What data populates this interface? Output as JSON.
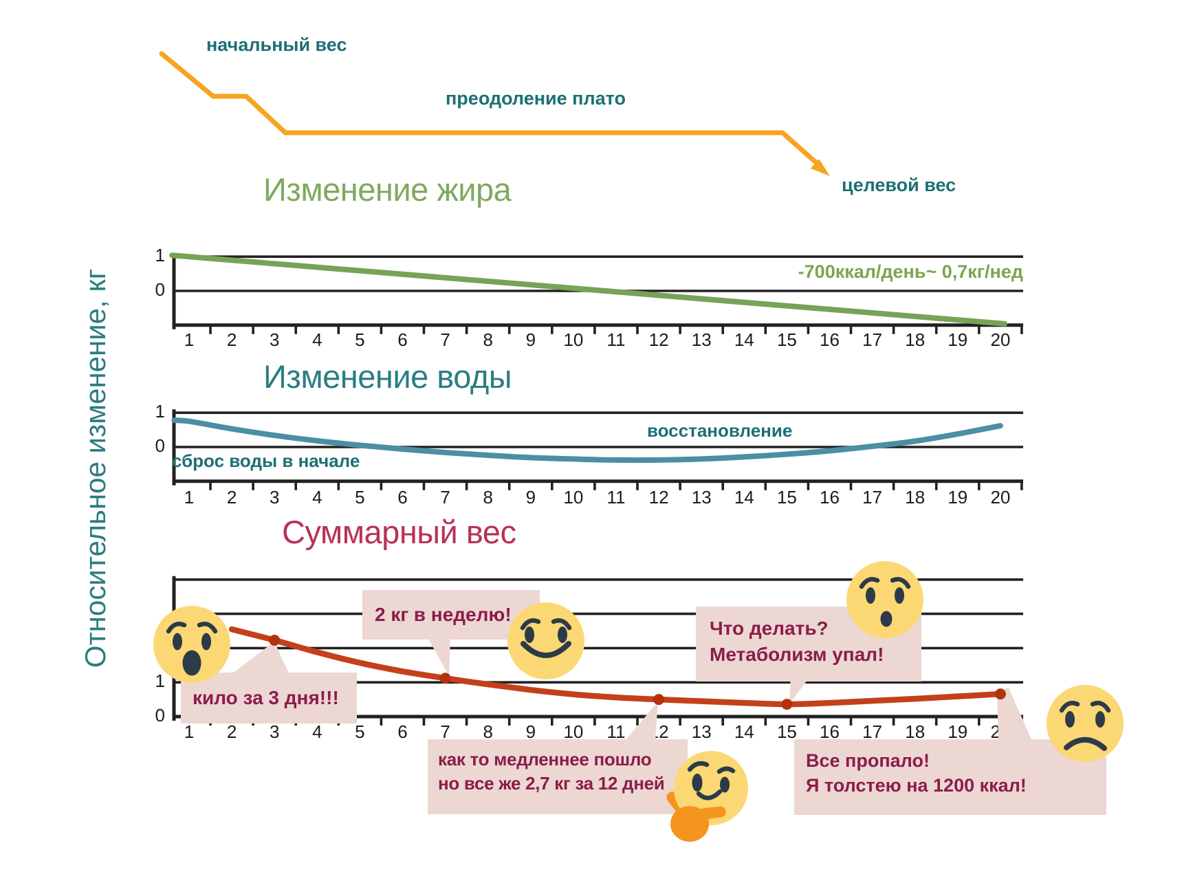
{
  "axis_label": "Относительное изменение, кг",
  "top_diagram": {
    "start_label": "начальный вес",
    "plateau_label": "преодоление плато",
    "target_label": "целевой вес"
  },
  "charts": {
    "fat": {
      "title": "Изменение жира",
      "annotation": "-700ккал/день~ 0,7кг/нед"
    },
    "water": {
      "title": "Изменение воды",
      "label_drop": "сброс воды в начале",
      "label_recovery": "восстановление"
    },
    "total": {
      "title": "Суммарный вес",
      "bubbles": {
        "b1": "кило за 3 дня!!!",
        "b2": "2 кг в неделю!",
        "b3_l1": "Что делать?",
        "b3_l2": "Метаболизм упал!",
        "b4_l1": "как то медленнее пошло",
        "b4_l2": "но все же 2,7 кг за 12 дней",
        "b5_l1": "Все пропало!",
        "b5_l2": "Я толстею на 1200 ккал!"
      }
    }
  },
  "emojis": [
    {
      "name": "shocked-emoji",
      "emotion": "surprised"
    },
    {
      "name": "smiling-emoji",
      "emotion": "happy"
    },
    {
      "name": "worried-surprised-emoji",
      "emotion": "surprised-small"
    },
    {
      "name": "sad-emoji",
      "emotion": "sad"
    },
    {
      "name": "thinking-emoji",
      "emotion": "thinking"
    }
  ],
  "colors": {
    "teal_dark": "#1d6f74",
    "teal": "#2a7d83",
    "green_title": "#7fa95f",
    "green_line": "#76a356",
    "green_annotation": "#7ca450",
    "blue_line": "#4c8ea4",
    "crimson_title": "#b93156",
    "maroon_text": "#8c1c4b",
    "orange_line": "#f7a41f",
    "red_line": "#c4401a",
    "red_dot": "#b2320e",
    "bubble_pink": "#ecd7d2",
    "emoji_yellow": "#fbd873",
    "emoji_face": "#2c3a49",
    "hand_orange": "#f6951d",
    "axis_black": "#232021"
  },
  "chart_data": [
    {
      "id": "weight-schematic",
      "type": "line",
      "title": "",
      "description": "schematic body-weight trajectory: initial drop, plateau, overcoming plateau, goal",
      "annotations": [
        "начальный вес",
        "преодоление плато",
        "целевой вес"
      ],
      "legend_position": "none",
      "grid": false
    },
    {
      "id": "fat-change",
      "type": "line",
      "title": "Изменение жира",
      "ylabel": "Относительное изменение, кг",
      "annotation": "-700ккал/день~ 0,7кг/нед",
      "x_labels": [
        "1",
        "2",
        "3",
        "4",
        "5",
        "6",
        "7",
        "8",
        "9",
        "10",
        "11",
        "12",
        "13",
        "14",
        "15",
        "16",
        "17",
        "18",
        "19",
        "20"
      ],
      "y_ticks": [
        {
          "v": 1,
          "label": "1"
        },
        {
          "v": 0,
          "label": "0"
        }
      ],
      "ylim": [
        -1,
        1
      ],
      "grid": true,
      "series": [
        {
          "name": "fat",
          "points": [
            [
              0.6,
              1.04
            ],
            [
              20.1,
              -0.96
            ]
          ]
        }
      ]
    },
    {
      "id": "water-change",
      "type": "line",
      "title": "Изменение воды",
      "ylabel": "Относительное изменение, кг",
      "x_labels": [
        "1",
        "2",
        "3",
        "4",
        "5",
        "6",
        "7",
        "8",
        "9",
        "10",
        "11",
        "12",
        "13",
        "14",
        "15",
        "16",
        "17",
        "18",
        "19",
        "20"
      ],
      "y_ticks": [
        {
          "v": 1,
          "label": "1"
        },
        {
          "v": 0,
          "label": "0"
        }
      ],
      "ylim": [
        -1,
        1
      ],
      "grid": true,
      "annotations": [
        "сброс воды в начале",
        "восстановление"
      ],
      "series": [
        {
          "name": "water",
          "points": [
            [
              0.65,
              0.78
            ],
            [
              1,
              0.75
            ],
            [
              2,
              0.53
            ],
            [
              3,
              0.34
            ],
            [
              4,
              0.18
            ],
            [
              5,
              0.05
            ],
            [
              6,
              -0.06
            ],
            [
              7,
              -0.16
            ],
            [
              8,
              -0.24
            ],
            [
              9,
              -0.31
            ],
            [
              10,
              -0.35
            ],
            [
              11,
              -0.38
            ],
            [
              12,
              -0.38
            ],
            [
              13,
              -0.35
            ],
            [
              14,
              -0.29
            ],
            [
              15,
              -0.21
            ],
            [
              16,
              -0.11
            ],
            [
              17,
              0.02
            ],
            [
              18,
              0.17
            ],
            [
              19,
              0.38
            ],
            [
              20,
              0.62
            ]
          ]
        }
      ]
    },
    {
      "id": "total-weight",
      "type": "line",
      "title": "Суммарный вес",
      "ylabel": "Относительное изменение, кг",
      "x_labels": [
        "1",
        "2",
        "3",
        "4",
        "5",
        "6",
        "7",
        "8",
        "9",
        "10",
        "11",
        "12",
        "13",
        "14",
        "15",
        "16",
        "17",
        "18",
        "19",
        "20"
      ],
      "y_ticks": [
        {
          "v": 4
        },
        {
          "v": 3
        },
        {
          "v": 2
        },
        {
          "v": 1,
          "label": "1"
        },
        {
          "v": 0,
          "label": "0"
        }
      ],
      "ylim": [
        0,
        4
      ],
      "grid": true,
      "series": [
        {
          "name": "total",
          "points": [
            [
              2,
              2.55
            ],
            [
              3,
              2.23
            ],
            [
              4,
              1.88
            ],
            [
              5,
              1.57
            ],
            [
              6,
              1.32
            ],
            [
              7,
              1.12
            ],
            [
              8,
              0.94
            ],
            [
              9,
              0.78
            ],
            [
              10,
              0.65
            ],
            [
              11,
              0.56
            ],
            [
              12,
              0.5
            ],
            [
              13,
              0.45
            ],
            [
              14,
              0.4
            ],
            [
              15,
              0.36
            ],
            [
              16,
              0.4
            ],
            [
              17,
              0.46
            ],
            [
              18,
              0.52
            ],
            [
              19,
              0.59
            ],
            [
              20,
              0.66
            ]
          ]
        }
      ],
      "markers": [
        3,
        7,
        12,
        15,
        20
      ],
      "bubble_notes": [
        "кило за 3 дня!!!",
        "2 кг в неделю!",
        "Что делать? Метаболизм упал!",
        "как то медленнее пошло но все же 2,7 кг за 12 дней",
        "Все пропало! Я толстею на 1200 ккал!"
      ]
    }
  ]
}
